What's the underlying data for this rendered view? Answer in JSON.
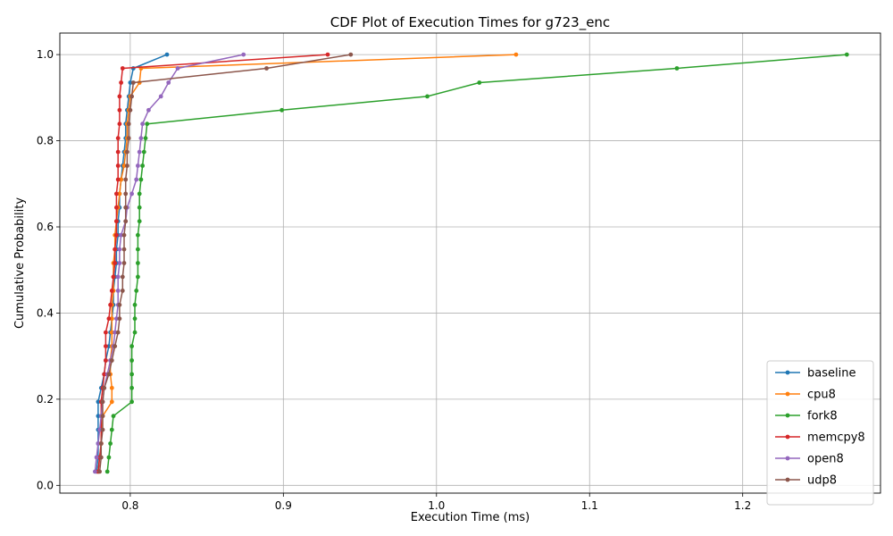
{
  "chart_data": {
    "type": "line",
    "title": "CDF Plot of Execution Times for g723_enc",
    "xlabel": "Execution Time (ms)",
    "ylabel": "Cumulative Probability",
    "xlim": [
      0.754,
      1.29
    ],
    "ylim": [
      -0.018,
      1.05
    ],
    "xticks": [
      "0.8",
      "0.9",
      "1.0",
      "1.1",
      "1.2"
    ],
    "xtick_values": [
      0.8,
      0.9,
      1.0,
      1.1,
      1.2
    ],
    "yticks": [
      "0.0",
      "0.2",
      "0.4",
      "0.6",
      "0.8",
      "1.0"
    ],
    "ytick_values": [
      0.0,
      0.2,
      0.4,
      0.6,
      0.8,
      1.0
    ],
    "grid": true,
    "legend_position": "bottom-right",
    "series": [
      {
        "name": "baseline",
        "color": "#1f77b4",
        "points": [
          [
            0.778,
            0.032
          ],
          [
            0.779,
            0.065
          ],
          [
            0.779,
            0.097
          ],
          [
            0.779,
            0.129
          ],
          [
            0.779,
            0.161
          ],
          [
            0.779,
            0.194
          ],
          [
            0.781,
            0.226
          ],
          [
            0.783,
            0.258
          ],
          [
            0.784,
            0.29
          ],
          [
            0.786,
            0.323
          ],
          [
            0.787,
            0.355
          ],
          [
            0.788,
            0.387
          ],
          [
            0.789,
            0.419
          ],
          [
            0.789,
            0.452
          ],
          [
            0.79,
            0.484
          ],
          [
            0.791,
            0.516
          ],
          [
            0.791,
            0.548
          ],
          [
            0.792,
            0.581
          ],
          [
            0.792,
            0.613
          ],
          [
            0.793,
            0.645
          ],
          [
            0.793,
            0.677
          ],
          [
            0.794,
            0.71
          ],
          [
            0.795,
            0.742
          ],
          [
            0.796,
            0.774
          ],
          [
            0.797,
            0.806
          ],
          [
            0.797,
            0.839
          ],
          [
            0.798,
            0.871
          ],
          [
            0.799,
            0.903
          ],
          [
            0.8,
            0.935
          ],
          [
            0.802,
            0.968
          ],
          [
            0.824,
            1.0
          ]
        ]
      },
      {
        "name": "cpu8",
        "color": "#ff7f0e",
        "points": [
          [
            0.779,
            0.032
          ],
          [
            0.78,
            0.065
          ],
          [
            0.781,
            0.097
          ],
          [
            0.781,
            0.129
          ],
          [
            0.782,
            0.161
          ],
          [
            0.788,
            0.194
          ],
          [
            0.788,
            0.226
          ],
          [
            0.787,
            0.258
          ],
          [
            0.787,
            0.29
          ],
          [
            0.788,
            0.323
          ],
          [
            0.788,
            0.355
          ],
          [
            0.788,
            0.387
          ],
          [
            0.788,
            0.419
          ],
          [
            0.789,
            0.452
          ],
          [
            0.789,
            0.484
          ],
          [
            0.789,
            0.516
          ],
          [
            0.79,
            0.548
          ],
          [
            0.79,
            0.581
          ],
          [
            0.791,
            0.613
          ],
          [
            0.792,
            0.645
          ],
          [
            0.793,
            0.677
          ],
          [
            0.794,
            0.71
          ],
          [
            0.796,
            0.742
          ],
          [
            0.797,
            0.774
          ],
          [
            0.798,
            0.806
          ],
          [
            0.798,
            0.839
          ],
          [
            0.799,
            0.871
          ],
          [
            0.8,
            0.903
          ],
          [
            0.806,
            0.935
          ],
          [
            0.807,
            0.968
          ],
          [
            1.052,
            1.0
          ]
        ]
      },
      {
        "name": "fork8",
        "color": "#2ca02c",
        "points": [
          [
            0.785,
            0.032
          ],
          [
            0.786,
            0.065
          ],
          [
            0.787,
            0.097
          ],
          [
            0.788,
            0.129
          ],
          [
            0.789,
            0.161
          ],
          [
            0.801,
            0.194
          ],
          [
            0.801,
            0.226
          ],
          [
            0.801,
            0.258
          ],
          [
            0.801,
            0.29
          ],
          [
            0.801,
            0.323
          ],
          [
            0.803,
            0.355
          ],
          [
            0.803,
            0.387
          ],
          [
            0.803,
            0.419
          ],
          [
            0.804,
            0.452
          ],
          [
            0.805,
            0.484
          ],
          [
            0.805,
            0.516
          ],
          [
            0.805,
            0.548
          ],
          [
            0.805,
            0.581
          ],
          [
            0.806,
            0.613
          ],
          [
            0.806,
            0.645
          ],
          [
            0.806,
            0.677
          ],
          [
            0.807,
            0.71
          ],
          [
            0.808,
            0.742
          ],
          [
            0.809,
            0.774
          ],
          [
            0.81,
            0.806
          ],
          [
            0.811,
            0.839
          ],
          [
            0.899,
            0.871
          ],
          [
            0.994,
            0.903
          ],
          [
            1.028,
            0.935
          ],
          [
            1.157,
            0.968
          ],
          [
            1.268,
            1.0
          ]
        ]
      },
      {
        "name": "memcpy8",
        "color": "#d62728",
        "points": [
          [
            0.779,
            0.032
          ],
          [
            0.78,
            0.065
          ],
          [
            0.781,
            0.097
          ],
          [
            0.781,
            0.129
          ],
          [
            0.781,
            0.161
          ],
          [
            0.781,
            0.194
          ],
          [
            0.782,
            0.226
          ],
          [
            0.783,
            0.258
          ],
          [
            0.784,
            0.29
          ],
          [
            0.784,
            0.323
          ],
          [
            0.784,
            0.355
          ],
          [
            0.786,
            0.387
          ],
          [
            0.787,
            0.419
          ],
          [
            0.788,
            0.452
          ],
          [
            0.789,
            0.484
          ],
          [
            0.79,
            0.516
          ],
          [
            0.79,
            0.548
          ],
          [
            0.791,
            0.581
          ],
          [
            0.791,
            0.613
          ],
          [
            0.791,
            0.645
          ],
          [
            0.791,
            0.677
          ],
          [
            0.792,
            0.71
          ],
          [
            0.792,
            0.742
          ],
          [
            0.792,
            0.774
          ],
          [
            0.792,
            0.806
          ],
          [
            0.793,
            0.839
          ],
          [
            0.793,
            0.871
          ],
          [
            0.793,
            0.903
          ],
          [
            0.794,
            0.935
          ],
          [
            0.795,
            0.968
          ],
          [
            0.929,
            1.0
          ]
        ]
      },
      {
        "name": "open8",
        "color": "#9467bd",
        "points": [
          [
            0.777,
            0.032
          ],
          [
            0.778,
            0.065
          ],
          [
            0.779,
            0.097
          ],
          [
            0.78,
            0.129
          ],
          [
            0.781,
            0.161
          ],
          [
            0.782,
            0.194
          ],
          [
            0.783,
            0.226
          ],
          [
            0.785,
            0.258
          ],
          [
            0.787,
            0.29
          ],
          [
            0.789,
            0.323
          ],
          [
            0.79,
            0.355
          ],
          [
            0.791,
            0.387
          ],
          [
            0.792,
            0.419
          ],
          [
            0.792,
            0.452
          ],
          [
            0.792,
            0.484
          ],
          [
            0.793,
            0.516
          ],
          [
            0.793,
            0.548
          ],
          [
            0.794,
            0.581
          ],
          [
            0.797,
            0.613
          ],
          [
            0.798,
            0.645
          ],
          [
            0.801,
            0.677
          ],
          [
            0.804,
            0.71
          ],
          [
            0.805,
            0.742
          ],
          [
            0.806,
            0.774
          ],
          [
            0.807,
            0.806
          ],
          [
            0.808,
            0.839
          ],
          [
            0.812,
            0.871
          ],
          [
            0.82,
            0.903
          ],
          [
            0.825,
            0.935
          ],
          [
            0.831,
            0.968
          ],
          [
            0.874,
            1.0
          ]
        ]
      },
      {
        "name": "udp8",
        "color": "#8c564b",
        "points": [
          [
            0.78,
            0.032
          ],
          [
            0.781,
            0.065
          ],
          [
            0.781,
            0.097
          ],
          [
            0.782,
            0.129
          ],
          [
            0.782,
            0.161
          ],
          [
            0.782,
            0.194
          ],
          [
            0.783,
            0.226
          ],
          [
            0.786,
            0.258
          ],
          [
            0.788,
            0.29
          ],
          [
            0.79,
            0.323
          ],
          [
            0.792,
            0.355
          ],
          [
            0.793,
            0.387
          ],
          [
            0.793,
            0.419
          ],
          [
            0.795,
            0.452
          ],
          [
            0.795,
            0.484
          ],
          [
            0.796,
            0.516
          ],
          [
            0.796,
            0.548
          ],
          [
            0.796,
            0.581
          ],
          [
            0.797,
            0.613
          ],
          [
            0.797,
            0.645
          ],
          [
            0.797,
            0.677
          ],
          [
            0.797,
            0.71
          ],
          [
            0.798,
            0.742
          ],
          [
            0.798,
            0.774
          ],
          [
            0.799,
            0.806
          ],
          [
            0.799,
            0.839
          ],
          [
            0.8,
            0.871
          ],
          [
            0.801,
            0.903
          ],
          [
            0.802,
            0.935
          ],
          [
            0.889,
            0.968
          ],
          [
            0.944,
            1.0
          ]
        ]
      }
    ]
  }
}
